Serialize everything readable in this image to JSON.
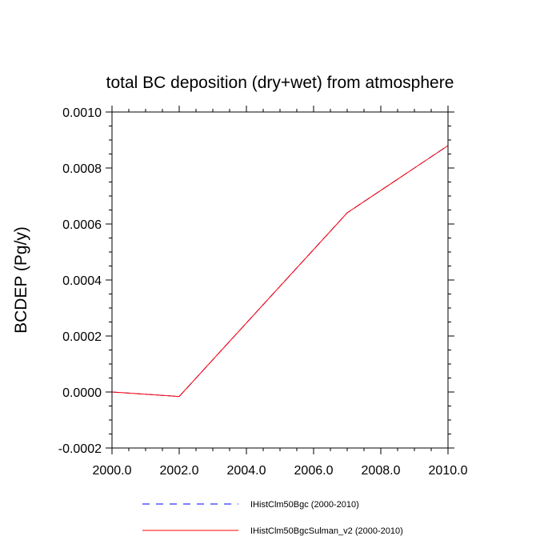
{
  "chart_data": {
    "type": "line",
    "title": "total BC deposition (dry+wet) from atmosphere",
    "xlabel": "",
    "ylabel": "BCDEP  (Pg/y)",
    "xlim": [
      2000.0,
      2010.0
    ],
    "ylim": [
      -0.0002,
      0.001
    ],
    "xticks": [
      2000.0,
      2002.0,
      2004.0,
      2006.0,
      2008.0,
      2010.0
    ],
    "xtick_labels": [
      "2000.0",
      "2002.0",
      "2004.0",
      "2006.0",
      "2008.0",
      "2010.0"
    ],
    "yticks": [
      -0.0002,
      0.0,
      0.0002,
      0.0004,
      0.0006,
      0.0008,
      0.001
    ],
    "ytick_labels": [
      "-0.0002",
      "0.0000",
      "0.0002",
      "0.0004",
      "0.0006",
      "0.0008",
      "0.0010"
    ],
    "grid": false,
    "legend_position": "bottom",
    "series": [
      {
        "name": "IHistClm50Bgc (2000-2010)",
        "color": "#0000ff",
        "style": "dashed",
        "x": [
          2000,
          2002,
          2007,
          2010
        ],
        "y": [
          0.0,
          -1.6e-05,
          0.00064,
          0.00088
        ]
      },
      {
        "name": "IHistClm50BgcSulman_v2 (2000-2010)",
        "color": "#ff0000",
        "style": "solid",
        "x": [
          2000,
          2002,
          2007,
          2010
        ],
        "y": [
          0.0,
          -1.6e-05,
          0.00064,
          0.00088
        ]
      }
    ]
  }
}
